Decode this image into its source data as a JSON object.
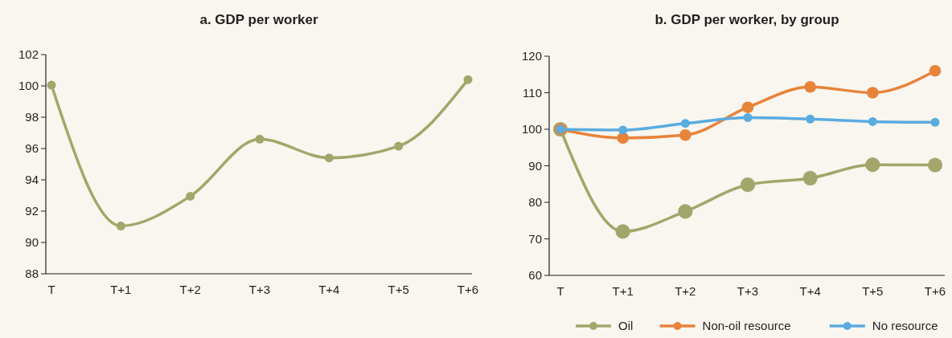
{
  "chart_data": [
    {
      "type": "line",
      "title": "a. GDP per worker",
      "categories": [
        "T",
        "T+1",
        "T+2",
        "T+3",
        "T+4",
        "T+5",
        "T+6"
      ],
      "ylim": [
        88,
        102
      ],
      "yticks": [
        88,
        90,
        92,
        94,
        96,
        98,
        100,
        102
      ],
      "marker": "circle",
      "grid": false,
      "legend": false,
      "series": [
        {
          "color": "#a3a66a",
          "values": [
            100.05,
            91.05,
            92.95,
            96.6,
            95.4,
            96.15,
            100.4
          ]
        }
      ]
    },
    {
      "type": "line",
      "title": "b. GDP per worker, by group",
      "categories": [
        "T",
        "T+1",
        "T+2",
        "T+3",
        "T+4",
        "T+5",
        "T+6"
      ],
      "ylim": [
        60,
        120
      ],
      "yticks": [
        60,
        70,
        80,
        90,
        100,
        110,
        120
      ],
      "marker": "circle",
      "grid": false,
      "legend": "bottom",
      "series": [
        {
          "name": "Oil",
          "color": "#a3a66a",
          "values": [
            100,
            72,
            77.5,
            84.8,
            86.6,
            90.3,
            90.2
          ]
        },
        {
          "name": "Non-oil resource",
          "color": "#e8833a",
          "values": [
            100,
            97.6,
            98.4,
            106,
            111.6,
            110,
            116
          ]
        },
        {
          "name": "No resource",
          "color": "#5aabe0",
          "values": [
            100,
            99.8,
            101.6,
            103.2,
            102.8,
            102.1,
            101.9
          ]
        }
      ]
    }
  ]
}
